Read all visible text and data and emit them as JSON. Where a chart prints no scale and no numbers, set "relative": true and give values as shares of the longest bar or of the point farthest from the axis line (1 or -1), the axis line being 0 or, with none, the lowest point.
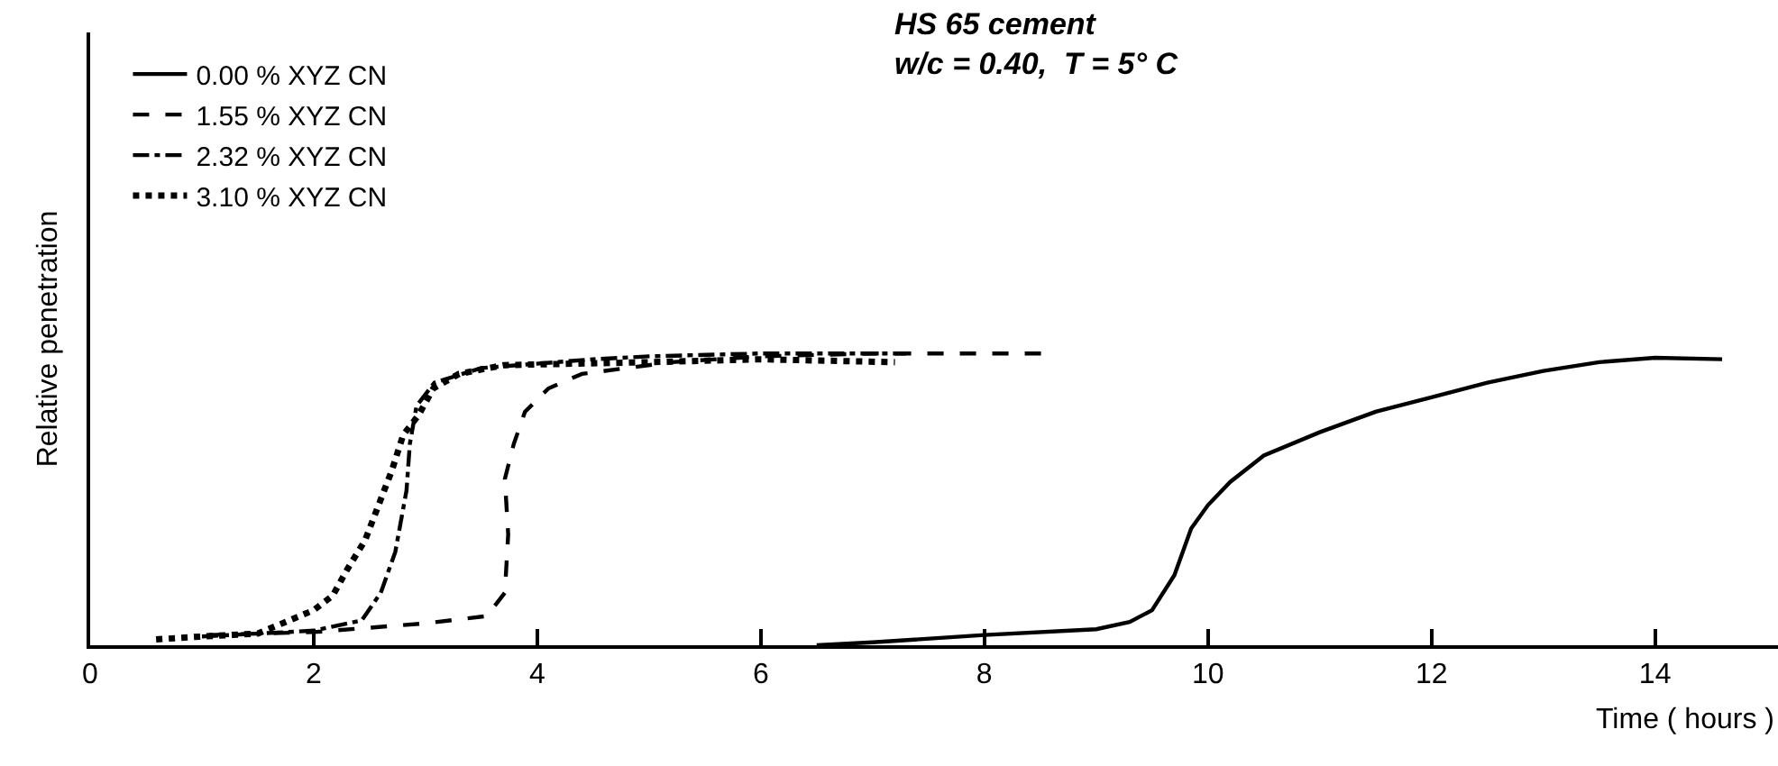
{
  "chart_data": {
    "type": "line",
    "title": "HS 65 cement",
    "subtitle": "w/c = 0.40,  T = 5° C",
    "xlabel": "Time ( hours )",
    "ylabel": "Relative penetration",
    "relative": true,
    "xlim": [
      0,
      15.1
    ],
    "xticks": [
      0,
      2,
      4,
      6,
      8,
      10,
      12,
      14
    ],
    "grid": false,
    "legend": "top left",
    "marker": "none",
    "series": [
      {
        "name": "0.00 % XYZ CN",
        "color": "#000000",
        "line_style": "solid",
        "x": [
          6.5,
          7,
          8,
          9,
          9.3,
          9.5,
          9.7,
          9.85,
          10,
          10.2,
          10.5,
          11,
          11.5,
          12,
          12.5,
          13,
          13.5,
          14,
          14.6
        ],
        "values": [
          0,
          0.01,
          0.035,
          0.055,
          0.08,
          0.12,
          0.24,
          0.4,
          0.48,
          0.56,
          0.65,
          0.73,
          0.8,
          0.85,
          0.9,
          0.94,
          0.97,
          0.985,
          0.98
        ]
      },
      {
        "name": "1.55 % XYZ CN",
        "color": "#000000",
        "line_style": "dashed",
        "x": [
          1.06,
          2,
          3,
          3.55,
          3.71,
          3.74,
          3.71,
          3.79,
          3.89,
          4.1,
          4.4,
          5.2,
          6,
          7,
          8.6
        ],
        "values": [
          0.035,
          0.045,
          0.075,
          0.1,
          0.18,
          0.38,
          0.57,
          0.69,
          0.8,
          0.88,
          0.93,
          0.97,
          0.99,
          1,
          1
        ]
      },
      {
        "name": "2.32 % XYZ CN",
        "color": "#000000",
        "line_style": "dashdot",
        "x": [
          1,
          2,
          2.43,
          2.6,
          2.73,
          2.83,
          2.86,
          2.92,
          3.08,
          3.5,
          4.5,
          5,
          6,
          7.3
        ],
        "values": [
          0.03,
          0.05,
          0.085,
          0.18,
          0.32,
          0.53,
          0.69,
          0.82,
          0.9,
          0.95,
          0.98,
          0.99,
          1,
          1
        ]
      },
      {
        "name": "3.10 % XYZ CN",
        "color": "#000000",
        "line_style": "dotted",
        "x": [
          0.59,
          1,
          1.5,
          2,
          2.17,
          2.3,
          2.46,
          2.6,
          2.7,
          2.8,
          2.94,
          3.07,
          3.3,
          3.7,
          5,
          6,
          7.2
        ],
        "values": [
          0.02,
          0.03,
          0.04,
          0.12,
          0.17,
          0.26,
          0.36,
          0.5,
          0.6,
          0.72,
          0.79,
          0.88,
          0.93,
          0.96,
          0.97,
          0.98,
          0.97
        ]
      }
    ]
  }
}
